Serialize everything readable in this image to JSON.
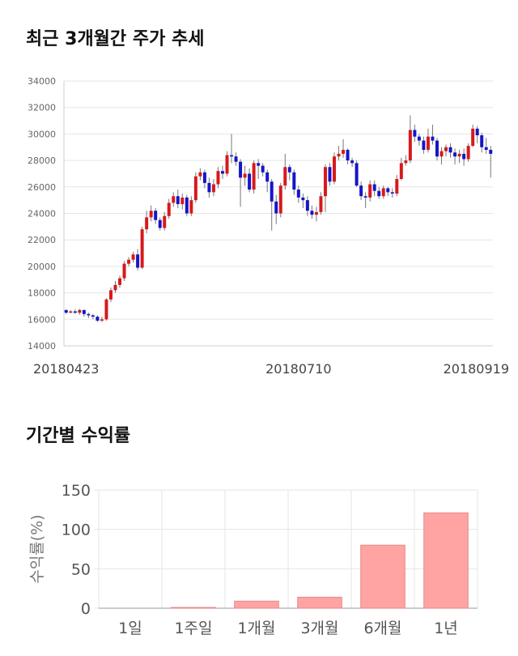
{
  "titles": {
    "price_trend": "최근 3개월간 주가 추세",
    "period_returns": "기간별 수익률"
  },
  "colors": {
    "up": "#d7191c",
    "down": "#1515c8",
    "bar": "#ffa3a3",
    "grid": "#e6e6e6"
  },
  "chart_data": [
    {
      "type": "candlestick",
      "y_ticks": [
        "34000",
        "32000",
        "30000",
        "28000",
        "26000",
        "24000",
        "22000",
        "20000",
        "18000",
        "16000",
        "14000"
      ],
      "ylim": [
        14000,
        34000
      ],
      "x_tick_labels": [
        {
          "index": 0,
          "label": "20180423"
        },
        {
          "index": 52,
          "label": "20180710"
        },
        {
          "index": 101,
          "label": "20180919"
        }
      ],
      "candles": [
        [
          16700,
          16500,
          16750,
          16400
        ],
        [
          16550,
          16600,
          16700,
          16450
        ],
        [
          16600,
          16500,
          16750,
          16400
        ],
        [
          16500,
          16700,
          16800,
          16350
        ],
        [
          16700,
          16400,
          16750,
          16200
        ],
        [
          16400,
          16300,
          16500,
          16100
        ],
        [
          16300,
          16200,
          16400,
          16000
        ],
        [
          16200,
          15900,
          16300,
          15800
        ],
        [
          15900,
          16000,
          16200,
          15800
        ],
        [
          16000,
          17500,
          17600,
          15900
        ],
        [
          17500,
          18200,
          18400,
          17300
        ],
        [
          18200,
          18600,
          18900,
          18000
        ],
        [
          18600,
          19100,
          19300,
          18400
        ],
        [
          19100,
          20200,
          20400,
          18900
        ],
        [
          20200,
          20500,
          20700,
          20000
        ],
        [
          20500,
          20900,
          21100,
          20300
        ],
        [
          20900,
          19900,
          21300,
          19700
        ],
        [
          19900,
          22800,
          23000,
          19800
        ],
        [
          22800,
          23700,
          24200,
          22500
        ],
        [
          23700,
          24200,
          24600,
          23400
        ],
        [
          24200,
          23500,
          24400,
          23200
        ],
        [
          23500,
          22900,
          23700,
          22700
        ],
        [
          22900,
          23800,
          24100,
          22700
        ],
        [
          23800,
          24800,
          25100,
          23600
        ],
        [
          24800,
          25300,
          25600,
          24500
        ],
        [
          25300,
          24700,
          25800,
          24400
        ],
        [
          24700,
          25200,
          25500,
          24300
        ],
        [
          25200,
          24000,
          25400,
          23800
        ],
        [
          24000,
          25000,
          25300,
          23800
        ],
        [
          25000,
          26800,
          27100,
          24800
        ],
        [
          26800,
          27100,
          27400,
          26500
        ],
        [
          27100,
          26300,
          27300,
          25900
        ],
        [
          26300,
          25600,
          26700,
          25200
        ],
        [
          25600,
          26200,
          26600,
          25300
        ],
        [
          26200,
          27200,
          27500,
          25900
        ],
        [
          27200,
          27000,
          27600,
          26600
        ],
        [
          27000,
          28400,
          28700,
          26800
        ],
        [
          28400,
          28300,
          30000,
          27800
        ],
        [
          28300,
          27900,
          28600,
          27600
        ],
        [
          27900,
          26700,
          28100,
          24500
        ],
        [
          26700,
          27000,
          27600,
          26100
        ],
        [
          27000,
          25800,
          27400,
          25600
        ],
        [
          25800,
          27800,
          28000,
          25500
        ],
        [
          27800,
          27600,
          28100,
          26600
        ],
        [
          27600,
          27100,
          27800,
          26800
        ],
        [
          27100,
          26400,
          27300,
          25600
        ],
        [
          26400,
          24900,
          26600,
          22700
        ],
        [
          24900,
          24000,
          25400,
          23200
        ],
        [
          24000,
          26100,
          26300,
          23700
        ],
        [
          26100,
          27500,
          28500,
          25800
        ],
        [
          27500,
          27100,
          27700,
          26500
        ],
        [
          27100,
          25800,
          27300,
          25400
        ],
        [
          25800,
          25200,
          26100,
          24800
        ],
        [
          25200,
          25000,
          25500,
          24400
        ],
        [
          25000,
          24200,
          25300,
          23800
        ],
        [
          24200,
          23900,
          24600,
          23600
        ],
        [
          23900,
          24100,
          24500,
          23400
        ],
        [
          24100,
          25300,
          25600,
          23900
        ],
        [
          25300,
          27500,
          27700,
          24100
        ],
        [
          27500,
          26400,
          27800,
          26100
        ],
        [
          26400,
          28300,
          28600,
          26200
        ],
        [
          28300,
          28500,
          29100,
          28000
        ],
        [
          28500,
          28800,
          29600,
          28200
        ],
        [
          28800,
          28000,
          28900,
          27700
        ],
        [
          28000,
          27800,
          28200,
          27500
        ],
        [
          27800,
          26100,
          28000,
          26000
        ],
        [
          26100,
          25300,
          26400,
          25000
        ],
        [
          25300,
          25200,
          25600,
          24400
        ],
        [
          25200,
          26200,
          26500,
          24900
        ],
        [
          26200,
          25700,
          26500,
          25300
        ],
        [
          25700,
          25300,
          26000,
          25100
        ],
        [
          25300,
          25900,
          26100,
          25100
        ],
        [
          25900,
          25600,
          26000,
          25300
        ],
        [
          25600,
          25500,
          25900,
          25200
        ],
        [
          25500,
          26600,
          26900,
          25300
        ],
        [
          26600,
          27800,
          28200,
          26500
        ],
        [
          27800,
          28000,
          28400,
          27600
        ],
        [
          28000,
          30300,
          31400,
          27800
        ],
        [
          30300,
          29800,
          30700,
          29400
        ],
        [
          29800,
          29500,
          30000,
          29100
        ],
        [
          29500,
          28800,
          29800,
          28500
        ],
        [
          28800,
          29800,
          30400,
          28600
        ],
        [
          29800,
          29500,
          30700,
          29200
        ],
        [
          29500,
          28300,
          29700,
          28000
        ],
        [
          28300,
          28700,
          29000,
          27700
        ],
        [
          28700,
          29000,
          29200,
          28300
        ],
        [
          29000,
          28600,
          29300,
          28200
        ],
        [
          28600,
          28300,
          28900,
          27700
        ],
        [
          28300,
          28500,
          28800,
          27800
        ],
        [
          28500,
          28100,
          28900,
          27600
        ],
        [
          28100,
          29100,
          29300,
          27900
        ],
        [
          29100,
          30400,
          30700,
          29000
        ],
        [
          30400,
          29900,
          30600,
          29300
        ],
        [
          29900,
          29000,
          30100,
          28600
        ],
        [
          29000,
          28800,
          29700,
          28500
        ],
        [
          28800,
          28500,
          29100,
          26700
        ]
      ]
    },
    {
      "type": "bar",
      "categories": [
        "1일",
        "1주일",
        "1개월",
        "3개월",
        "6개월",
        "1년"
      ],
      "values": [
        0,
        1,
        9,
        14,
        80,
        121
      ],
      "ylabel": "수익률(%)",
      "ylim": [
        0,
        150
      ],
      "y_ticks": [
        "150",
        "100",
        "50",
        "0"
      ],
      "grid": true
    }
  ]
}
